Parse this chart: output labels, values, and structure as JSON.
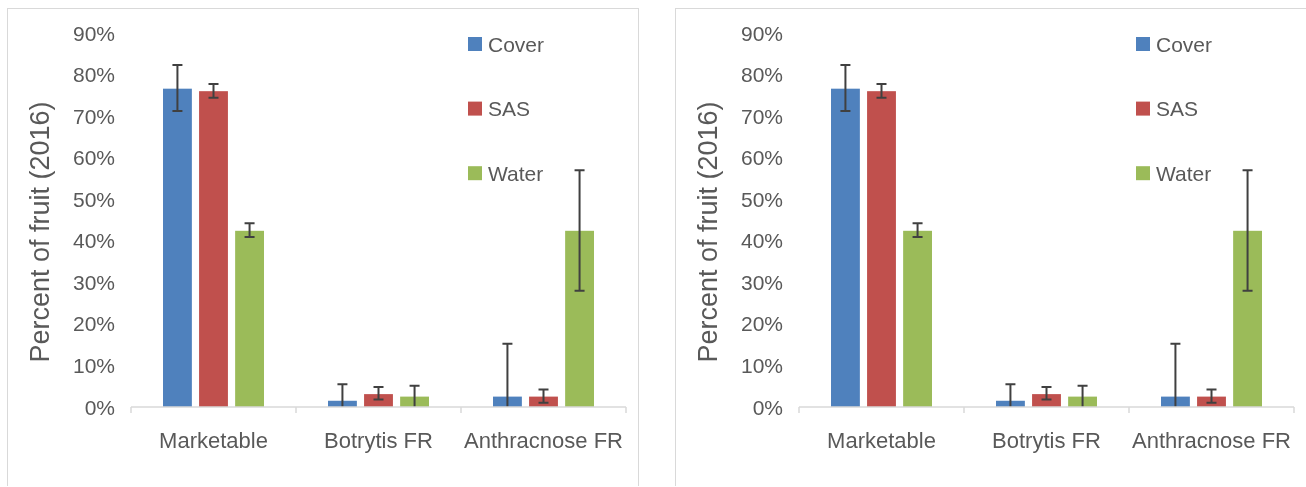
{
  "chart_data": [
    {
      "type": "bar",
      "categories": [
        "Marketable",
        "Botrytis FR",
        "Anthracnose FR"
      ],
      "ylabel": "Percent of fruit (2016)",
      "ylim": [
        0,
        90
      ],
      "yticks": [
        {
          "value": 0,
          "label": "0%"
        },
        {
          "value": 10,
          "label": "10%"
        },
        {
          "value": 20,
          "label": "20%"
        },
        {
          "value": 30,
          "label": "30%"
        },
        {
          "value": 40,
          "label": "40%"
        },
        {
          "value": 50,
          "label": "50%"
        },
        {
          "value": 60,
          "label": "60%"
        },
        {
          "value": 70,
          "label": "70%"
        },
        {
          "value": 80,
          "label": "80%"
        },
        {
          "value": 90,
          "label": "90%"
        }
      ],
      "legend": "top right",
      "series": [
        {
          "name": "Cover",
          "color": "#4f81bd",
          "values": [
            76.6,
            1.5,
            2.5
          ],
          "errors": [
            [
              71.2,
              82.3
            ],
            [
              0,
              5.5
            ],
            [
              0,
              15.2
            ]
          ]
        },
        {
          "name": "SAS",
          "color": "#c0504d",
          "values": [
            76.0,
            3.1,
            2.5
          ],
          "errors": [
            [
              74.4,
              77.7
            ],
            [
              1.8,
              4.8
            ],
            [
              1.0,
              4.2
            ]
          ]
        },
        {
          "name": "Water",
          "color": "#9bbb59",
          "values": [
            42.4,
            2.5,
            42.4
          ],
          "errors": [
            [
              40.9,
              44.2
            ],
            [
              0,
              5.1
            ],
            [
              28.0,
              57.0
            ]
          ]
        }
      ]
    },
    {
      "type": "bar",
      "categories": [
        "Marketable",
        "Botrytis FR",
        "Anthracnose FR"
      ],
      "ylabel": "Percent of fruit (2016)",
      "ylim": [
        0,
        90
      ],
      "yticks": [
        {
          "value": 0,
          "label": "0%"
        },
        {
          "value": 10,
          "label": "10%"
        },
        {
          "value": 20,
          "label": "20%"
        },
        {
          "value": 30,
          "label": "30%"
        },
        {
          "value": 40,
          "label": "40%"
        },
        {
          "value": 50,
          "label": "50%"
        },
        {
          "value": 60,
          "label": "60%"
        },
        {
          "value": 70,
          "label": "70%"
        },
        {
          "value": 80,
          "label": "80%"
        },
        {
          "value": 90,
          "label": "90%"
        }
      ],
      "legend": "top right",
      "series": [
        {
          "name": "Cover",
          "color": "#4f81bd",
          "values": [
            76.6,
            1.5,
            2.5
          ],
          "errors": [
            [
              71.2,
              82.3
            ],
            [
              0,
              5.5
            ],
            [
              0,
              15.2
            ]
          ]
        },
        {
          "name": "SAS",
          "color": "#c0504d",
          "values": [
            76.0,
            3.1,
            2.5
          ],
          "errors": [
            [
              74.4,
              77.7
            ],
            [
              1.8,
              4.8
            ],
            [
              1.0,
              4.2
            ]
          ]
        },
        {
          "name": "Water",
          "color": "#9bbb59",
          "values": [
            42.4,
            2.5,
            42.4
          ],
          "errors": [
            [
              40.9,
              44.2
            ],
            [
              0,
              5.1
            ],
            [
              28.0,
              57.0
            ]
          ]
        }
      ]
    }
  ]
}
